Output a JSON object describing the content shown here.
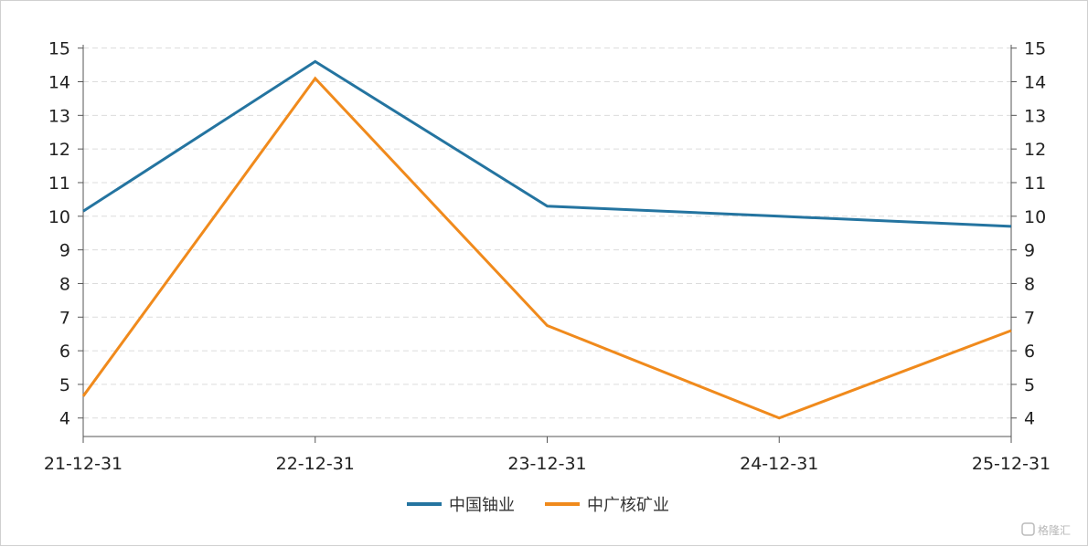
{
  "chart_data": {
    "type": "line",
    "categories": [
      "21-12-31",
      "22-12-31",
      "23-12-31",
      "24-12-31",
      "25-12-31"
    ],
    "series": [
      {
        "name": "中国铀业",
        "color": "#2474a0",
        "values": [
          10.15,
          14.6,
          10.3,
          10.0,
          9.7
        ]
      },
      {
        "name": "中广核矿业",
        "color": "#f08a1c",
        "values": [
          4.65,
          14.1,
          6.75,
          4.0,
          6.6
        ]
      }
    ],
    "y_ticks": [
      "4",
      "5",
      "6",
      "7",
      "8",
      "9",
      "10",
      "11",
      "12",
      "13",
      "14",
      "15"
    ],
    "ylim": [
      3.45,
      15.1
    ],
    "y_axes": [
      "left",
      "right"
    ],
    "grid": "horizontal-dashed",
    "legend": "bottom-center"
  },
  "watermark": {
    "text": "格隆汇"
  }
}
